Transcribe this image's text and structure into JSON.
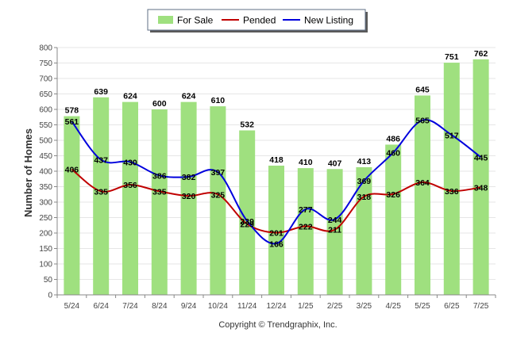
{
  "chart_data": {
    "type": "bar",
    "ylabel": "Number of Homes",
    "ylim": [
      0,
      800
    ],
    "yticks": [
      0,
      50,
      100,
      150,
      200,
      250,
      300,
      350,
      400,
      450,
      500,
      550,
      600,
      650,
      700,
      750,
      800
    ],
    "categories": [
      "5/24",
      "6/24",
      "7/24",
      "8/24",
      "9/24",
      "10/24",
      "11/24",
      "12/24",
      "1/25",
      "2/25",
      "3/25",
      "4/25",
      "5/25",
      "6/25",
      "7/25"
    ],
    "series": [
      {
        "name": "For Sale",
        "kind": "bar",
        "color": "#9fe07f",
        "values": [
          578,
          639,
          624,
          600,
          624,
          610,
          532,
          418,
          410,
          407,
          413,
          486,
          645,
          751,
          762
        ]
      },
      {
        "name": "Pended",
        "kind": "line",
        "color": "#c00000",
        "values": [
          406,
          335,
          356,
          335,
          320,
          325,
          229,
          201,
          222,
          211,
          318,
          326,
          364,
          336,
          348
        ]
      },
      {
        "name": "New Listing",
        "kind": "line",
        "color": "#0000dd",
        "values": [
          561,
          437,
          430,
          386,
          382,
          397,
          239,
          166,
          277,
          244,
          369,
          460,
          565,
          517,
          445
        ]
      }
    ],
    "legend_position": "top-center",
    "grid": true
  },
  "footer": {
    "copyright": "Copyright © Trendgraphix, Inc."
  }
}
